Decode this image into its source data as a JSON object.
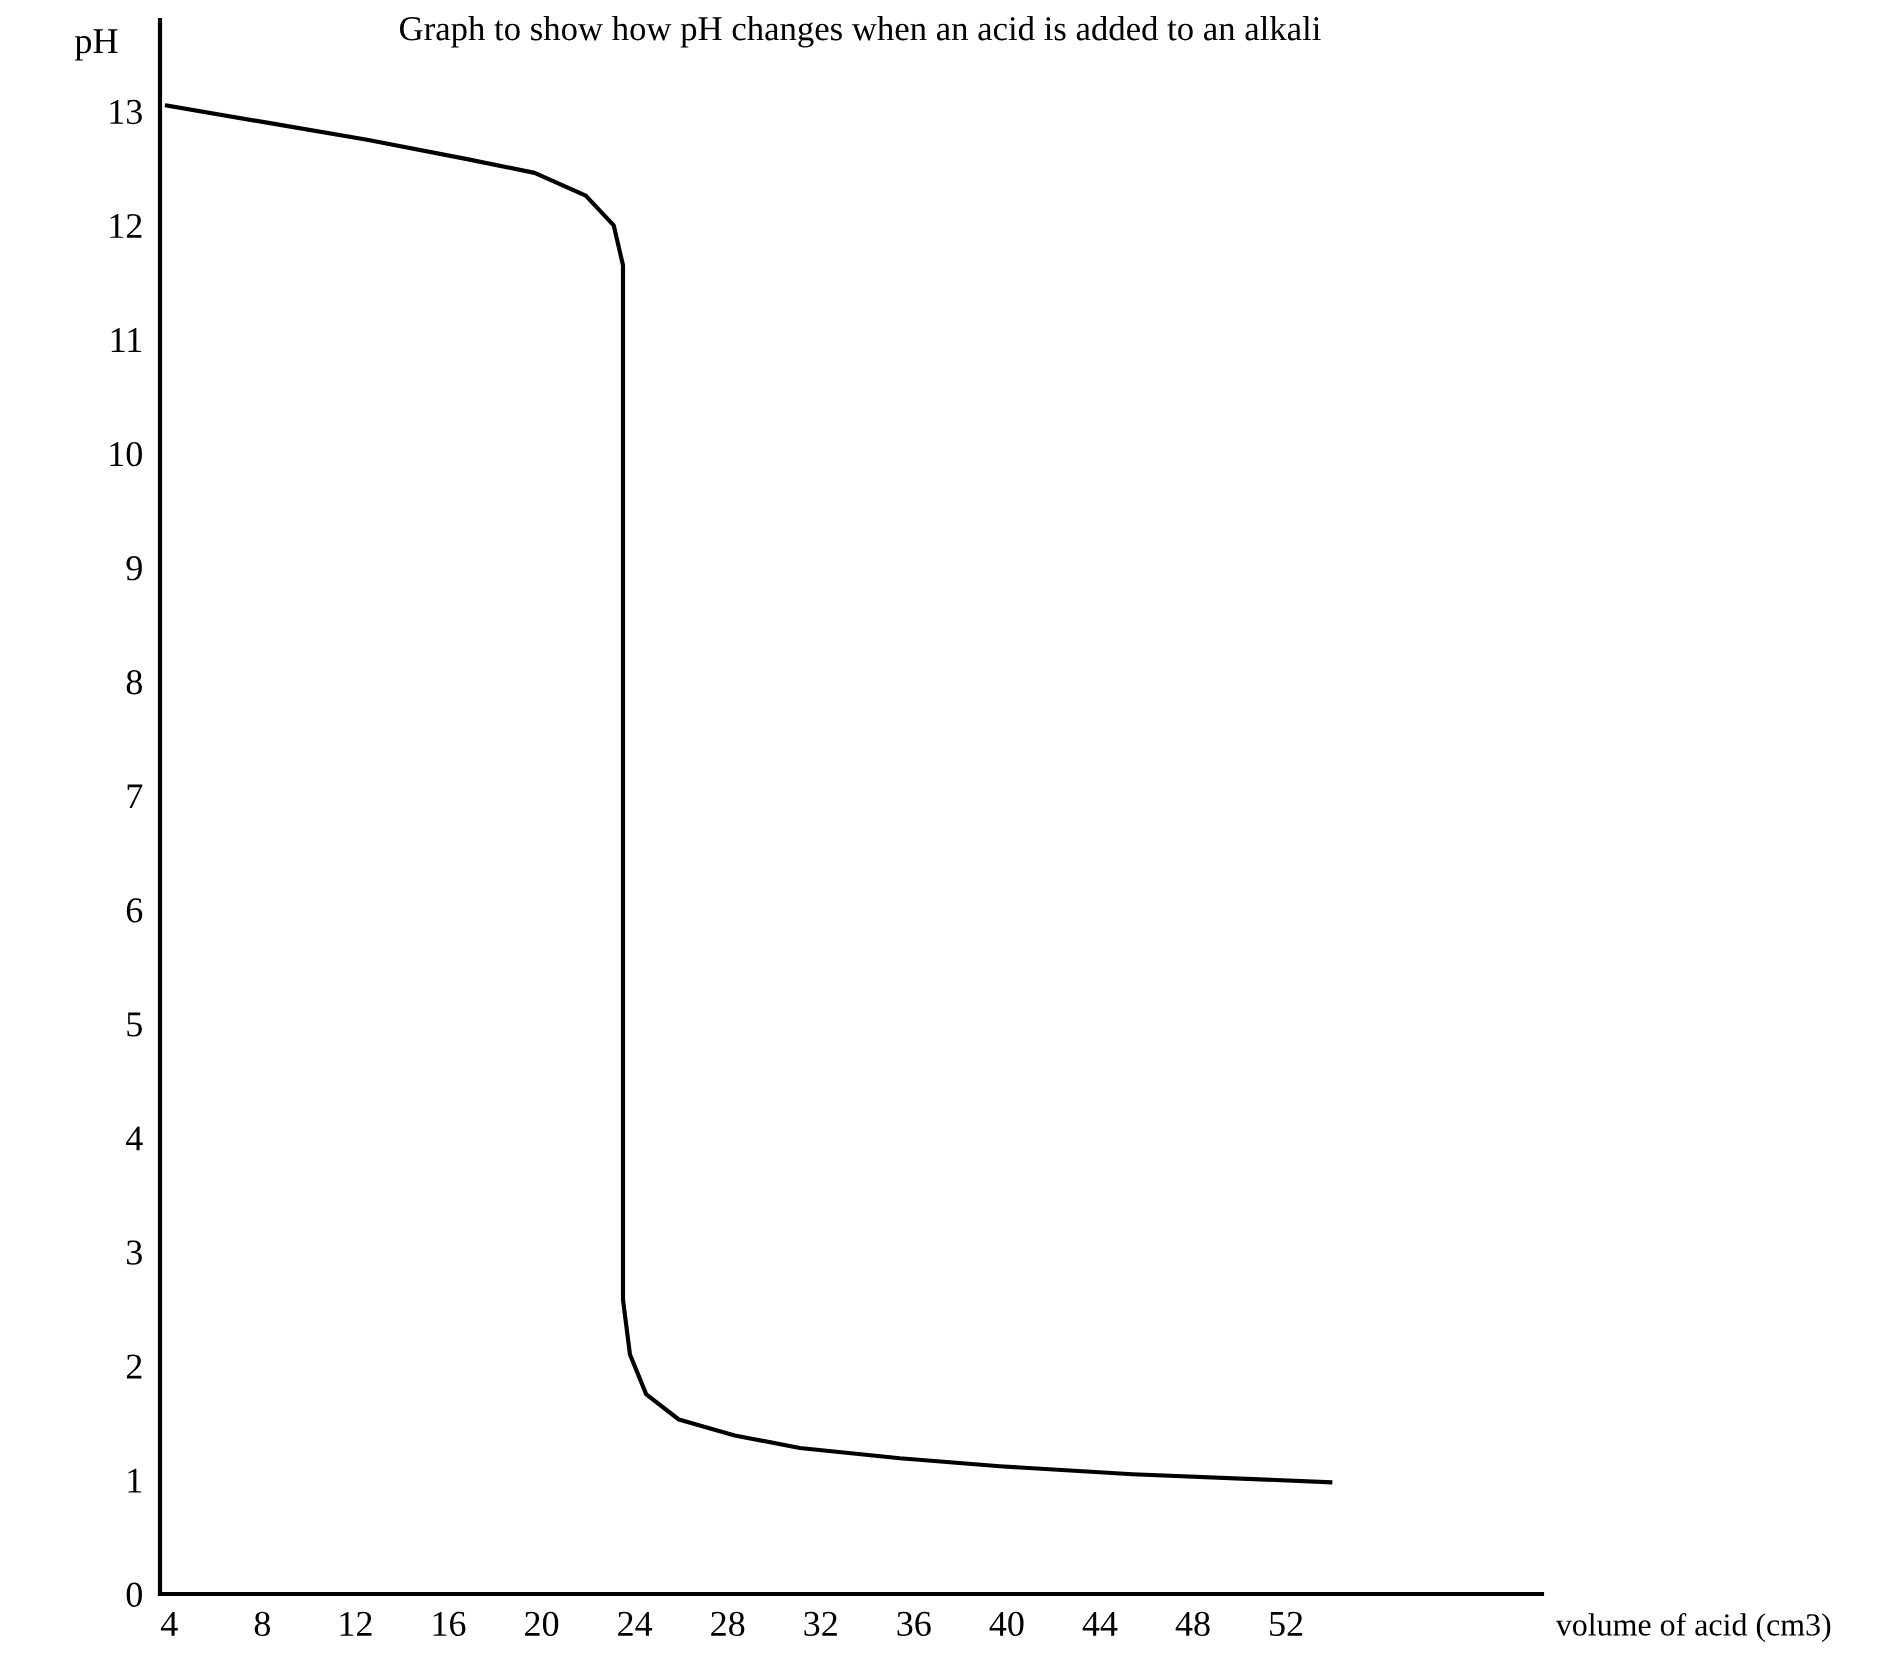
{
  "chart_data": {
    "type": "line",
    "title": "Graph to show how pH changes when an acid is added to an alkali",
    "xlabel": "volume of acid (cm3)",
    "ylabel": "pH",
    "series": [
      {
        "color": "#000000",
        "x": [
          3.9,
          8.2,
          12.5,
          16.8,
          19.7,
          21.9,
          23.1,
          23.5,
          23.5,
          23.8,
          24.5,
          25.9,
          28.3,
          31.1,
          35.4,
          39.7,
          45.4,
          53.9
        ],
        "values": [
          13.05,
          12.9,
          12.75,
          12.58,
          12.46,
          12.26,
          12.0,
          11.65,
          2.58,
          2.1,
          1.75,
          1.53,
          1.39,
          1.28,
          1.19,
          1.12,
          1.05,
          0.98
        ]
      }
    ],
    "xlim": [
      3.6,
      63
    ],
    "ylim": [
      0,
      13.8
    ],
    "xticks": [
      4,
      8,
      12,
      16,
      20,
      24,
      28,
      32,
      36,
      40,
      44,
      48,
      52
    ],
    "yticks": [
      0,
      1,
      2,
      3,
      4,
      5,
      6,
      7,
      8,
      9,
      10,
      11,
      12,
      13
    ],
    "grid": false,
    "legend": false,
    "marker": "none",
    "line_style": "solid"
  }
}
